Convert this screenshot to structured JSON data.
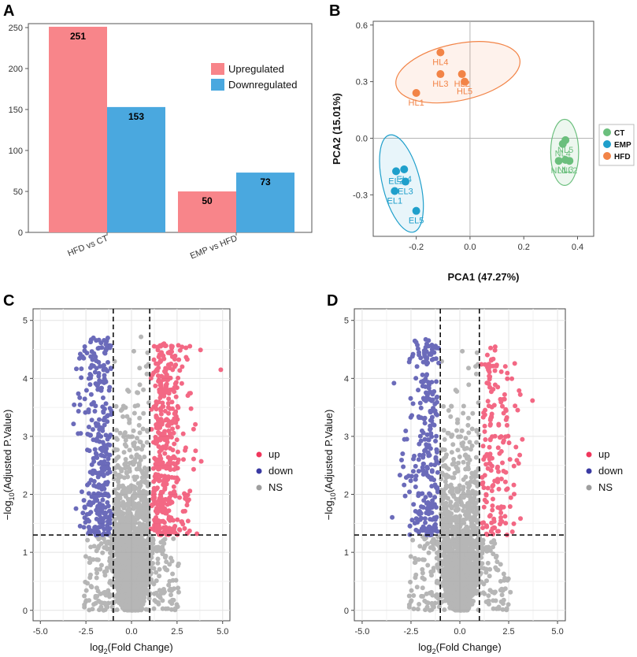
{
  "chart_data": [
    {
      "panel": "A",
      "type": "bar",
      "categories": [
        "HFD vs CT",
        "EMP vs HFD"
      ],
      "series": [
        {
          "name": "Upregulated",
          "values": [
            251,
            50
          ],
          "color": "#F8858A"
        },
        {
          "name": "Downregulated",
          "values": [
            153,
            73
          ],
          "color": "#4AA8DF"
        }
      ],
      "ylim": [
        0,
        250
      ],
      "yticks": [
        0,
        50,
        100,
        150,
        200,
        250
      ],
      "legend_position": "right"
    },
    {
      "panel": "B",
      "type": "scatter",
      "xlabel": "PCA1 (47.27%)",
      "ylabel": "PCA2 (15.01%)",
      "xlim": [
        -0.36,
        0.46
      ],
      "ylim": [
        -0.52,
        0.62
      ],
      "xticks": [
        -0.2,
        0.0,
        0.2,
        0.4
      ],
      "xtick_labels": [
        "-0.2",
        "0.0",
        "0.2",
        "0.4"
      ],
      "yticks": [
        -0.3,
        0.0,
        0.3,
        0.6
      ],
      "ytick_labels": [
        "-0.3",
        "0.0",
        "0.3",
        "0.6"
      ],
      "groups": [
        {
          "name": "CT",
          "color": "#6BBF7D",
          "points": [
            {
              "label": "NL1",
              "x": 0.33,
              "y": -0.12
            },
            {
              "label": "NL2",
              "x": 0.37,
              "y": -0.12
            },
            {
              "label": "NL3",
              "x": 0.355,
              "y": -0.115
            },
            {
              "label": "NL4",
              "x": 0.345,
              "y": -0.03
            },
            {
              "label": "NL5",
              "x": 0.355,
              "y": -0.01
            }
          ]
        },
        {
          "name": "EMP",
          "color": "#1F9FCB",
          "points": [
            {
              "label": "EL1",
              "x": -0.28,
              "y": -0.28
            },
            {
              "label": "EL2",
              "x": -0.275,
              "y": -0.175
            },
            {
              "label": "EL3",
              "x": -0.24,
              "y": -0.23
            },
            {
              "label": "EL4",
              "x": -0.245,
              "y": -0.165
            },
            {
              "label": "EL5",
              "x": -0.2,
              "y": -0.385
            }
          ]
        },
        {
          "name": "HFD",
          "color": "#F28447",
          "points": [
            {
              "label": "HL1",
              "x": -0.2,
              "y": 0.24
            },
            {
              "label": "HL2",
              "x": -0.03,
              "y": 0.34
            },
            {
              "label": "HL3",
              "x": -0.11,
              "y": 0.34
            },
            {
              "label": "HL4",
              "x": -0.11,
              "y": 0.455
            },
            {
              "label": "HL5",
              "x": -0.02,
              "y": 0.3
            }
          ]
        }
      ]
    },
    {
      "panel": "C",
      "type": "scatter",
      "xlabel_main": "log",
      "xlabel_sub": "2",
      "xlabel_rest": "(Fold Change)",
      "ylabel_main": "−log",
      "ylabel_sub": "10",
      "ylabel_rest": "(Adjusted P.Value)",
      "xlim": [
        -5.4,
        5.4
      ],
      "ylim": [
        -0.18,
        5.2
      ],
      "xticks": [
        -5,
        -2.5,
        0,
        2.5,
        5
      ],
      "xtick_labels": [
        "-5.0",
        "-2.5",
        "0.0",
        "2.5",
        "5.0"
      ],
      "yticks": [
        0,
        1,
        2,
        3,
        4,
        5
      ],
      "ytick_labels": [
        "0",
        "1",
        "2",
        "3",
        "4",
        "5"
      ],
      "fc_threshold": 1,
      "p_threshold": 1.3,
      "legend": [
        "up",
        "down",
        "NS"
      ],
      "legend_colors": [
        "#F0365C",
        "#3A3AA3",
        "#9E9E9E"
      ],
      "n_up": 440,
      "n_down": 320,
      "n_ns": 3200
    },
    {
      "panel": "D",
      "type": "scatter",
      "xlabel_main": "log",
      "xlabel_sub": "2",
      "xlabel_rest": "(Fold Change)",
      "ylabel_main": "−log",
      "ylabel_sub": "10",
      "ylabel_rest": "(Adjusted P.Value)",
      "xlim": [
        -5.4,
        5.4
      ],
      "ylim": [
        -0.18,
        5.2
      ],
      "xticks": [
        -5,
        -2.5,
        0,
        2.5,
        5
      ],
      "xtick_labels": [
        "-5.0",
        "-2.5",
        "0.0",
        "2.5",
        "5.0"
      ],
      "yticks": [
        0,
        1,
        2,
        3,
        4,
        5
      ],
      "ytick_labels": [
        "0",
        "1",
        "2",
        "3",
        "4",
        "5"
      ],
      "fc_threshold": 1,
      "p_threshold": 1.3,
      "legend": [
        "up",
        "down",
        "NS"
      ],
      "legend_colors": [
        "#F0365C",
        "#3A3AA3",
        "#9E9E9E"
      ],
      "n_up": 180,
      "n_down": 280,
      "n_ns": 2600
    }
  ]
}
